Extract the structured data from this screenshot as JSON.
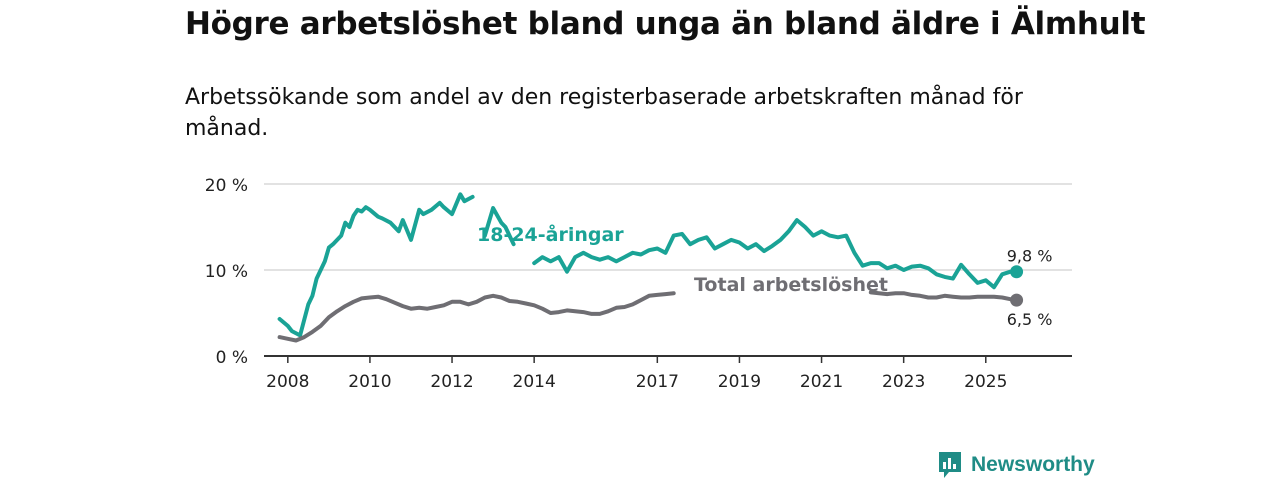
{
  "title": "Högre arbetslöshet bland unga än bland äldre i Älmhult",
  "subtitle": "Arbetssökande som andel av den registerbaserade arbetskraften månad för månad.",
  "brand": {
    "name": "Newsworthy",
    "logo_icon": "bar-chart-speech-bubble-icon"
  },
  "colors": {
    "youth": "#1aa396",
    "total": "#6f6e73",
    "grid": "#d9d9d9",
    "axis": "#333333"
  },
  "chart_data": {
    "type": "line",
    "title": "Högre arbetslöshet bland unga än bland äldre i Älmhult",
    "xlabel": "",
    "ylabel": "",
    "ylim": [
      0,
      20
    ],
    "xlim": [
      2007.8,
      2026.9
    ],
    "y_ticks": [
      {
        "value": 0,
        "label": "0 %"
      },
      {
        "value": 10,
        "label": "10 %"
      },
      {
        "value": 20,
        "label": "20 %"
      }
    ],
    "x_ticks": [
      {
        "value": 2008,
        "label": "2008"
      },
      {
        "value": 2010,
        "label": "2010"
      },
      {
        "value": 2012,
        "label": "2012"
      },
      {
        "value": 2014,
        "label": "2014"
      },
      {
        "value": 2017,
        "label": "2017"
      },
      {
        "value": 2019,
        "label": "2019"
      },
      {
        "value": 2021,
        "label": "2021"
      },
      {
        "value": 2023,
        "label": "2023"
      },
      {
        "value": 2025,
        "label": "2025"
      }
    ],
    "grid": true,
    "series": [
      {
        "name": "18-24-åringar",
        "color": "#1aa396",
        "end_label": "9,8 %",
        "x": [
          2007.8,
          2008.0,
          2008.1,
          2008.3,
          2008.5,
          2008.6,
          2008.7,
          2008.9,
          2009.0,
          2009.1,
          2009.3,
          2009.4,
          2009.5,
          2009.6,
          2009.7,
          2009.8,
          2009.9,
          2010.0,
          2010.2,
          2010.3,
          2010.5,
          2010.7,
          2010.8,
          2011.0,
          2011.2,
          2011.3,
          2011.5,
          2011.7,
          2011.8,
          2012.0,
          2012.2,
          2012.3,
          2012.5,
          2012.6,
          2012.8,
          2013.0,
          2013.2,
          2013.3,
          2013.5,
          2013.7,
          2013.8,
          2014.0,
          2014.2,
          2014.4,
          2014.6,
          2014.8,
          2015.0,
          2015.2,
          2015.4,
          2015.6,
          2015.8,
          2016.0,
          2016.2,
          2016.4,
          2016.6,
          2016.8,
          2017.0,
          2017.2,
          2017.4,
          2017.6,
          2017.8,
          2018.0,
          2018.2,
          2018.4,
          2018.6,
          2018.8,
          2019.0,
          2019.2,
          2019.4,
          2019.6,
          2019.8,
          2020.0,
          2020.2,
          2020.4,
          2020.6,
          2020.8,
          2021.0,
          2021.2,
          2021.4,
          2021.6,
          2021.8,
          2022.0,
          2022.2,
          2022.4,
          2022.6,
          2022.8,
          2023.0,
          2023.2,
          2023.4,
          2023.6,
          2023.8,
          2024.0,
          2024.2,
          2024.4,
          2024.6,
          2024.8,
          2025.0,
          2025.2,
          2025.4,
          2025.6,
          2025.75
        ],
        "values": [
          4.3,
          3.5,
          2.9,
          2.4,
          6.0,
          7.0,
          9.0,
          11.0,
          12.6,
          13.0,
          14.0,
          15.5,
          15.0,
          16.3,
          17.0,
          16.8,
          17.3,
          17.0,
          16.2,
          16.0,
          15.5,
          14.5,
          15.8,
          13.5,
          17.0,
          16.5,
          17.0,
          17.8,
          17.3,
          16.5,
          18.8,
          18.0,
          18.5,
          17.5,
          14.0,
          17.2,
          15.5,
          15.0,
          13.0,
          12.5,
          11.5,
          10.8,
          11.5,
          11.0,
          11.5,
          9.8,
          11.5,
          12.0,
          11.5,
          11.2,
          11.5,
          11.0,
          11.5,
          12.0,
          11.8,
          12.3,
          12.5,
          12.0,
          14.0,
          14.2,
          13.0,
          13.5,
          13.8,
          12.5,
          13.0,
          13.5,
          13.2,
          12.5,
          13.0,
          12.2,
          12.8,
          13.5,
          14.5,
          15.8,
          15.0,
          14.0,
          14.5,
          14.0,
          13.8,
          14.0,
          12.0,
          10.5,
          10.8,
          10.8,
          10.2,
          10.5,
          10.0,
          10.4,
          10.5,
          10.2,
          9.5,
          9.2,
          9.0,
          10.6,
          9.5,
          8.5,
          8.8,
          8.0,
          9.5,
          9.8,
          9.8
        ],
        "gaps": [
          [
            2012.55,
            2012.8
          ],
          [
            2013.6,
            2014.0
          ]
        ]
      },
      {
        "name": "Total arbetslöshet",
        "color": "#6f6e73",
        "end_label": "6,5 %",
        "x": [
          2007.8,
          2008.0,
          2008.2,
          2008.4,
          2008.6,
          2008.8,
          2009.0,
          2009.2,
          2009.4,
          2009.6,
          2009.8,
          2010.0,
          2010.2,
          2010.4,
          2010.6,
          2010.8,
          2011.0,
          2011.2,
          2011.4,
          2011.6,
          2011.8,
          2012.0,
          2012.2,
          2012.4,
          2012.6,
          2012.8,
          2013.0,
          2013.2,
          2013.4,
          2013.6,
          2013.8,
          2014.0,
          2014.2,
          2014.4,
          2014.6,
          2014.8,
          2015.0,
          2015.2,
          2015.4,
          2015.6,
          2015.8,
          2016.0,
          2016.2,
          2016.4,
          2016.6,
          2016.8,
          2017.0,
          2017.2,
          2017.4,
          2017.6,
          2017.8,
          2018.0,
          2018.2,
          2018.4,
          2018.6,
          2018.8,
          2019.0,
          2019.2,
          2019.4,
          2019.6,
          2019.8,
          2020.0,
          2020.2,
          2020.4,
          2020.6,
          2020.8,
          2021.0,
          2021.2,
          2021.4,
          2021.6,
          2021.8,
          2022.0,
          2022.2,
          2022.4,
          2022.6,
          2022.8,
          2023.0,
          2023.2,
          2023.4,
          2023.6,
          2023.8,
          2024.0,
          2024.2,
          2024.4,
          2024.6,
          2024.8,
          2025.0,
          2025.2,
          2025.4,
          2025.6,
          2025.75
        ],
        "values": [
          2.2,
          2.0,
          1.8,
          2.2,
          2.8,
          3.5,
          4.5,
          5.2,
          5.8,
          6.3,
          6.7,
          6.8,
          6.9,
          6.6,
          6.2,
          5.8,
          5.5,
          5.6,
          5.5,
          5.7,
          5.9,
          6.3,
          6.3,
          6.0,
          6.3,
          6.8,
          7.0,
          6.8,
          6.4,
          6.3,
          6.1,
          5.9,
          5.5,
          5.0,
          5.1,
          5.3,
          5.2,
          5.1,
          4.9,
          4.9,
          5.2,
          5.6,
          5.7,
          6.0,
          6.5,
          7.0,
          7.1,
          7.2,
          7.3,
          7.3,
          7.2,
          7.2,
          7.1,
          7.0,
          7.1,
          7.2,
          7.2,
          7.3,
          7.2,
          7.2,
          7.3,
          7.4,
          7.5,
          7.6,
          7.8,
          7.9,
          7.9,
          7.9,
          7.8,
          7.7,
          7.5,
          7.5,
          7.4,
          7.3,
          7.2,
          7.3,
          7.3,
          7.1,
          7.0,
          6.8,
          6.8,
          7.0,
          6.9,
          6.8,
          6.8,
          6.9,
          6.9,
          6.9,
          6.8,
          6.6,
          6.5
        ],
        "gaps": [
          [
            2017.55,
            2022.05
          ]
        ]
      }
    ],
    "annotations": [
      {
        "text": "18-24-åringar",
        "series": "18-24-åringar"
      },
      {
        "text": "Total arbetslöshet",
        "series": "Total arbetslöshet"
      }
    ]
  }
}
